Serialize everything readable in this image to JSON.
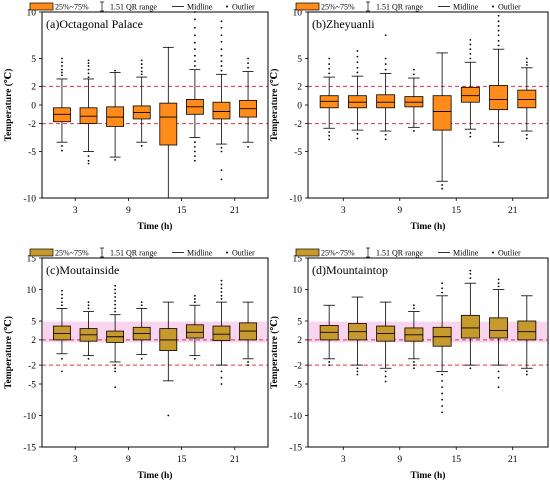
{
  "legend": {
    "box_label": "25%~75%",
    "range_label": "1.51 QR range",
    "midline_label": "Midline",
    "outlier_label": "Outlier"
  },
  "axis_labels": {
    "x": "Time  (h)",
    "y": "Temperature (℃)"
  },
  "colors": {
    "orange_box": "#FF8C1A",
    "olive_box": "#C89A2E",
    "ref_line": "#E0304A",
    "highlight_band": "#F7C6E8",
    "ink": "#000000"
  },
  "chart_data": [
    {
      "type": "box",
      "title": "(a)Octagonal Palace",
      "box_fill": "orange",
      "highlight": false,
      "x_categories": [
        1,
        2,
        3,
        4,
        5,
        6,
        7,
        8
      ],
      "x_tick_labels": [
        "3",
        "9",
        "15",
        "21"
      ],
      "x_tick_positions": [
        1.5,
        3.5,
        5.5,
        7.5
      ],
      "ylim": [
        -10,
        10
      ],
      "y_ticks": [
        -10,
        -5,
        -2,
        0,
        2,
        5,
        10
      ],
      "reference_lines": [
        2,
        -2
      ],
      "boxes": [
        {
          "x": 1,
          "q1": -1.8,
          "med": -1.0,
          "q3": -0.3,
          "lo": -4.0,
          "hi": 2.8,
          "out": [
            3.2,
            3.5,
            3.8,
            4.2,
            4.6,
            5.0,
            -4.4,
            -4.9
          ]
        },
        {
          "x": 2,
          "q1": -2.0,
          "med": -1.2,
          "q3": -0.3,
          "lo": -5.0,
          "hi": 2.8,
          "out": [
            3.0,
            3.4,
            3.8,
            4.2,
            4.5,
            4.8,
            -5.5,
            -6.0,
            -6.3
          ]
        },
        {
          "x": 3,
          "q1": -2.3,
          "med": -1.3,
          "q3": -0.2,
          "lo": -5.6,
          "hi": 3.5,
          "out": [
            3.7,
            -5.9
          ]
        },
        {
          "x": 4,
          "q1": -1.5,
          "med": -0.8,
          "q3": -0.1,
          "lo": -4.0,
          "hi": 3.0,
          "out": [
            3.3,
            3.6,
            4.0,
            4.4,
            4.8,
            -4.4
          ]
        },
        {
          "x": 5,
          "q1": -4.3,
          "med": -1.3,
          "q3": 0.2,
          "lo": -10.0,
          "hi": 6.2,
          "out": []
        },
        {
          "x": 6,
          "q1": -1.0,
          "med": -0.2,
          "q3": 0.6,
          "lo": -3.5,
          "hi": 3.8,
          "out": [
            4.2,
            4.7,
            5.3,
            6.0,
            6.7,
            7.5,
            8.3,
            9.2,
            10.0,
            -4.0,
            -4.5,
            -5.0,
            -5.5,
            -6.0
          ]
        },
        {
          "x": 7,
          "q1": -1.5,
          "med": -0.7,
          "q3": 0.3,
          "lo": -4.2,
          "hi": 3.3,
          "out": [
            3.7,
            4.2,
            4.7,
            5.3,
            6.0,
            6.8,
            7.5,
            8.3,
            9.0,
            -4.6,
            -5.0,
            -7.0,
            -8.0
          ]
        },
        {
          "x": 8,
          "q1": -1.3,
          "med": -0.4,
          "q3": 0.5,
          "lo": -4.0,
          "hi": 3.6,
          "out": [
            4.0,
            4.5,
            5.0,
            -4.5
          ]
        }
      ]
    },
    {
      "type": "box",
      "title": "(b)Zheyuanli",
      "box_fill": "orange",
      "highlight": false,
      "x_categories": [
        1,
        2,
        3,
        4,
        5,
        6,
        7,
        8
      ],
      "x_tick_labels": [
        "3",
        "9",
        "15",
        "21"
      ],
      "x_tick_positions": [
        1.5,
        3.5,
        5.5,
        7.5
      ],
      "ylim": [
        -10,
        10
      ],
      "y_ticks": [
        -10,
        -5,
        -2,
        0,
        2,
        5,
        10
      ],
      "reference_lines": [
        2,
        -2
      ],
      "boxes": [
        {
          "x": 1,
          "q1": -0.3,
          "med": 0.4,
          "q3": 1.0,
          "lo": -2.5,
          "hi": 3.0,
          "out": [
            3.4,
            3.9,
            4.4,
            5.0,
            -2.9,
            -3.3,
            -3.7
          ]
        },
        {
          "x": 2,
          "q1": -0.3,
          "med": 0.3,
          "q3": 1.0,
          "lo": -2.7,
          "hi": 3.1,
          "out": [
            3.5,
            4.0,
            4.6,
            5.2,
            5.8,
            -3.1,
            -3.6
          ]
        },
        {
          "x": 3,
          "q1": -0.3,
          "med": 0.3,
          "q3": 1.1,
          "lo": -2.8,
          "hi": 3.4,
          "out": [
            3.8,
            4.4,
            5.0,
            7.5,
            -3.2,
            -3.7
          ]
        },
        {
          "x": 4,
          "q1": -0.2,
          "med": 0.3,
          "q3": 0.9,
          "lo": -2.4,
          "hi": 2.9,
          "out": [
            3.3,
            3.8,
            -2.8
          ]
        },
        {
          "x": 5,
          "q1": -2.7,
          "med": -0.7,
          "q3": 1.0,
          "lo": -8.2,
          "hi": 5.6,
          "out": [
            -8.6,
            -9.0
          ]
        },
        {
          "x": 6,
          "q1": 0.3,
          "med": 1.0,
          "q3": 1.9,
          "lo": -2.6,
          "hi": 4.6,
          "out": [
            5.0,
            5.5,
            6.0,
            6.5,
            7.0,
            -3.0,
            -3.4
          ]
        },
        {
          "x": 7,
          "q1": -0.5,
          "med": 0.6,
          "q3": 2.1,
          "lo": -4.0,
          "hi": 6.0,
          "out": [
            6.4,
            6.9,
            7.5,
            8.0,
            8.5,
            9.0,
            9.6,
            -4.4
          ]
        },
        {
          "x": 8,
          "q1": -0.3,
          "med": 0.6,
          "q3": 1.6,
          "lo": -2.8,
          "hi": 4.0,
          "out": [
            4.3,
            4.6,
            5.0,
            -3.2,
            -3.6
          ]
        }
      ]
    },
    {
      "type": "box",
      "title": "(c)Moutainside",
      "box_fill": "olive",
      "highlight": true,
      "x_categories": [
        1,
        2,
        3,
        4,
        5,
        6,
        7,
        8
      ],
      "x_tick_labels": [
        "3",
        "9",
        "15",
        "21"
      ],
      "x_tick_positions": [
        1.5,
        3.5,
        5.5,
        7.5
      ],
      "ylim": [
        -15,
        15
      ],
      "y_ticks": [
        -15,
        -10,
        -5,
        -2,
        2,
        5,
        10,
        15
      ],
      "reference_lines": [
        2,
        -2
      ],
      "boxes": [
        {
          "x": 1,
          "q1": 2.0,
          "med": 3.0,
          "q3": 4.2,
          "lo": -0.2,
          "hi": 7.0,
          "out": [
            7.5,
            8.0,
            8.6,
            9.2,
            9.8,
            -1.0,
            -3.0
          ]
        },
        {
          "x": 2,
          "q1": 1.8,
          "med": 2.8,
          "q3": 3.8,
          "lo": -0.5,
          "hi": 6.5,
          "out": [
            7.0,
            7.5,
            8.0,
            -1.0
          ]
        },
        {
          "x": 3,
          "q1": 1.6,
          "med": 2.5,
          "q3": 3.4,
          "lo": -1.5,
          "hi": 6.0,
          "out": [
            6.5,
            7.0,
            7.6,
            8.2,
            8.8,
            9.4,
            10.0,
            10.6,
            -2.0,
            -2.5,
            -3.0,
            -5.5
          ]
        },
        {
          "x": 4,
          "q1": 2.0,
          "med": 3.0,
          "q3": 4.0,
          "lo": -0.3,
          "hi": 7.0,
          "out": [
            7.5,
            8.0,
            -1.0
          ]
        },
        {
          "x": 5,
          "q1": 0.3,
          "med": 2.0,
          "q3": 3.8,
          "lo": -4.5,
          "hi": 8.0,
          "out": [
            -10.0
          ]
        },
        {
          "x": 6,
          "q1": 2.3,
          "med": 3.2,
          "q3": 4.4,
          "lo": -0.5,
          "hi": 7.5,
          "out": [
            8.0,
            8.5,
            9.0,
            -1.0
          ]
        },
        {
          "x": 7,
          "q1": 1.9,
          "med": 2.9,
          "q3": 4.2,
          "lo": -2.0,
          "hi": 8.0,
          "out": [
            8.5,
            9.0,
            9.6,
            10.2,
            10.8,
            11.4,
            -3.0,
            -4.0,
            -5.0
          ]
        },
        {
          "x": 8,
          "q1": 2.0,
          "med": 3.4,
          "q3": 4.7,
          "lo": -1.0,
          "hi": 8.0,
          "out": [
            -1.5,
            -2.0
          ]
        }
      ]
    },
    {
      "type": "box",
      "title": "(d)Mountaintop",
      "box_fill": "olive",
      "highlight": true,
      "x_categories": [
        1,
        2,
        3,
        4,
        5,
        6,
        7,
        8
      ],
      "x_tick_labels": [
        "3",
        "9",
        "15",
        "21"
      ],
      "x_tick_positions": [
        1.5,
        3.5,
        5.5,
        7.5
      ],
      "ylim": [
        -15,
        15
      ],
      "y_ticks": [
        -15,
        -10,
        -5,
        -2,
        2,
        5,
        10,
        15
      ],
      "reference_lines": [
        2,
        -2
      ],
      "boxes": [
        {
          "x": 1,
          "q1": 2.0,
          "med": 3.2,
          "q3": 4.3,
          "lo": -1.0,
          "hi": 7.5,
          "out": [
            -1.5,
            -2.0
          ]
        },
        {
          "x": 2,
          "q1": 2.0,
          "med": 3.3,
          "q3": 4.6,
          "lo": -2.0,
          "hi": 8.8,
          "out": [
            -2.5,
            -3.0,
            -3.5
          ]
        },
        {
          "x": 3,
          "q1": 1.8,
          "med": 3.0,
          "q3": 4.2,
          "lo": -2.5,
          "hi": 8.0,
          "out": [
            -3.0,
            -3.8,
            -4.6
          ]
        },
        {
          "x": 4,
          "q1": 1.8,
          "med": 2.8,
          "q3": 3.9,
          "lo": -1.0,
          "hi": 6.5,
          "out": [
            7.0,
            7.5,
            -1.5,
            -2.0,
            -2.5
          ]
        },
        {
          "x": 5,
          "q1": 1.0,
          "med": 2.5,
          "q3": 4.0,
          "lo": -3.0,
          "hi": 9.0,
          "out": [
            9.5,
            10.2,
            11.0,
            -3.5,
            -4.5,
            -5.5,
            -6.5,
            -7.5,
            -8.5,
            -9.5
          ]
        },
        {
          "x": 6,
          "q1": 2.3,
          "med": 3.9,
          "q3": 5.9,
          "lo": -2.0,
          "hi": 11.0,
          "out": [
            11.8,
            12.5,
            13.0,
            -2.5
          ]
        },
        {
          "x": 7,
          "q1": 2.3,
          "med": 3.5,
          "q3": 5.5,
          "lo": -2.0,
          "hi": 10.0,
          "out": [
            10.5,
            11.0,
            11.6,
            -3.0,
            -4.0,
            -5.5
          ]
        },
        {
          "x": 8,
          "q1": 2.0,
          "med": 3.3,
          "q3": 5.0,
          "lo": -2.5,
          "hi": 9.0,
          "out": [
            -3.0,
            -3.5
          ]
        }
      ]
    }
  ]
}
